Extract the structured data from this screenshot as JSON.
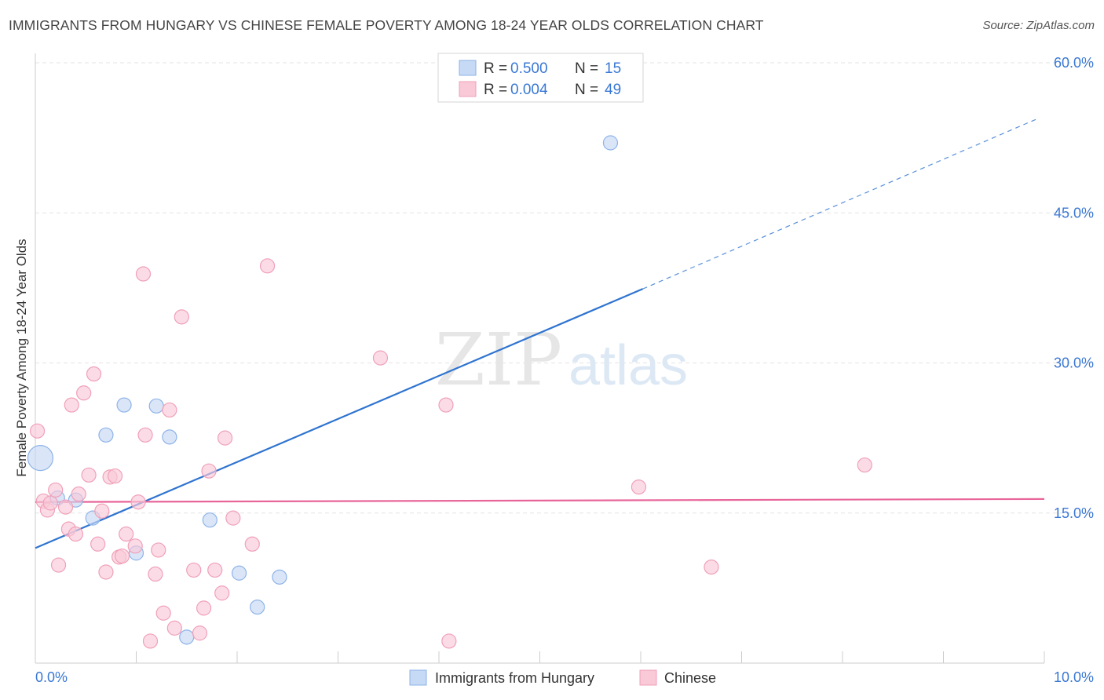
{
  "title": "IMMIGRANTS FROM HUNGARY VS CHINESE FEMALE POVERTY AMONG 18-24 YEAR OLDS CORRELATION CHART",
  "source": "Source: ZipAtlas.com",
  "watermark": {
    "zip": "ZIP",
    "atlas": "atlas"
  },
  "colors": {
    "blue_fill": "#c6d9f5",
    "blue_stroke": "#8eb3e8",
    "blue_line": "#2f74d0",
    "pink_fill": "#f9c9d8",
    "pink_stroke": "#f0a0b8",
    "pink_line": "#e8659a",
    "axis_text": "#3a78d4",
    "grid": "#e3e3e3"
  },
  "legend": {
    "r_label": "R =",
    "n_label": "N =",
    "rows": [
      {
        "series": "Immigrants from Hungary",
        "r": "0.500",
        "n": "15"
      },
      {
        "series": "Chinese",
        "r": "0.004",
        "n": "49"
      }
    ]
  },
  "chart_data": {
    "type": "scatter",
    "title": "IMMIGRANTS FROM HUNGARY VS CHINESE FEMALE POVERTY AMONG 18-24 YEAR OLDS CORRELATION CHART",
    "xlabel": "",
    "ylabel": "Female Poverty Among 18-24 Year Olds",
    "xlim": [
      0,
      10
    ],
    "ylim": [
      0,
      60
    ],
    "x_tick_labels": [
      "0.0%",
      "10.0%"
    ],
    "y_ticks": [
      15,
      30,
      45,
      60
    ],
    "y_tick_labels": [
      "15.0%",
      "30.0%",
      "45.0%",
      "60.0%"
    ],
    "series": [
      {
        "name": "Immigrants from Hungary",
        "color": "blue",
        "points": [
          {
            "x": 0.05,
            "y": 20.5,
            "big": true
          },
          {
            "x": 0.22,
            "y": 16.5
          },
          {
            "x": 0.4,
            "y": 16.3
          },
          {
            "x": 0.57,
            "y": 14.5
          },
          {
            "x": 0.7,
            "y": 22.8
          },
          {
            "x": 0.88,
            "y": 25.8
          },
          {
            "x": 1.0,
            "y": 11.0
          },
          {
            "x": 1.2,
            "y": 25.7
          },
          {
            "x": 1.33,
            "y": 22.6
          },
          {
            "x": 1.5,
            "y": 2.6
          },
          {
            "x": 1.73,
            "y": 14.3
          },
          {
            "x": 2.02,
            "y": 9.0
          },
          {
            "x": 2.2,
            "y": 5.6
          },
          {
            "x": 2.42,
            "y": 8.6
          },
          {
            "x": 5.7,
            "y": 52.0
          }
        ],
        "trend": {
          "x0": 0.0,
          "y0": 11.5,
          "x1": 6.02,
          "y1": 37.4,
          "x_dash_end": 9.93,
          "y_dash_end": 54.4
        }
      },
      {
        "name": "Chinese",
        "color": "pink",
        "points": [
          {
            "x": 0.02,
            "y": 23.2
          },
          {
            "x": 0.08,
            "y": 16.2
          },
          {
            "x": 0.12,
            "y": 15.3
          },
          {
            "x": 0.15,
            "y": 16.0
          },
          {
            "x": 0.2,
            "y": 17.3
          },
          {
            "x": 0.23,
            "y": 9.8
          },
          {
            "x": 0.3,
            "y": 15.6
          },
          {
            "x": 0.33,
            "y": 13.4
          },
          {
            "x": 0.36,
            "y": 25.8
          },
          {
            "x": 0.4,
            "y": 12.9
          },
          {
            "x": 0.43,
            "y": 16.9
          },
          {
            "x": 0.48,
            "y": 27.0
          },
          {
            "x": 0.53,
            "y": 18.8
          },
          {
            "x": 0.58,
            "y": 28.9
          },
          {
            "x": 0.62,
            "y": 11.9
          },
          {
            "x": 0.66,
            "y": 15.2
          },
          {
            "x": 0.7,
            "y": 9.1
          },
          {
            "x": 0.74,
            "y": 18.6
          },
          {
            "x": 0.79,
            "y": 18.7
          },
          {
            "x": 0.83,
            "y": 10.6
          },
          {
            "x": 0.86,
            "y": 10.7
          },
          {
            "x": 0.9,
            "y": 12.9
          },
          {
            "x": 0.99,
            "y": 11.7
          },
          {
            "x": 1.02,
            "y": 16.1
          },
          {
            "x": 1.07,
            "y": 38.9
          },
          {
            "x": 1.09,
            "y": 22.8
          },
          {
            "x": 1.14,
            "y": 2.2
          },
          {
            "x": 1.19,
            "y": 8.9
          },
          {
            "x": 1.22,
            "y": 11.3
          },
          {
            "x": 1.27,
            "y": 5.0
          },
          {
            "x": 1.33,
            "y": 25.3
          },
          {
            "x": 1.38,
            "y": 3.5
          },
          {
            "x": 1.45,
            "y": 34.6
          },
          {
            "x": 1.57,
            "y": 9.3
          },
          {
            "x": 1.63,
            "y": 3.0
          },
          {
            "x": 1.67,
            "y": 5.5
          },
          {
            "x": 1.72,
            "y": 19.2
          },
          {
            "x": 1.78,
            "y": 9.3
          },
          {
            "x": 1.85,
            "y": 7.0
          },
          {
            "x": 1.88,
            "y": 22.5
          },
          {
            "x": 1.96,
            "y": 14.5
          },
          {
            "x": 2.15,
            "y": 11.9
          },
          {
            "x": 2.3,
            "y": 39.7
          },
          {
            "x": 3.42,
            "y": 30.5
          },
          {
            "x": 4.07,
            "y": 25.8
          },
          {
            "x": 4.1,
            "y": 2.2
          },
          {
            "x": 5.98,
            "y": 17.6
          },
          {
            "x": 6.7,
            "y": 9.6
          },
          {
            "x": 8.22,
            "y": 19.8
          }
        ],
        "trend": {
          "x0": 0.0,
          "y0": 16.1,
          "x1": 10.0,
          "y1": 16.4
        }
      }
    ]
  }
}
